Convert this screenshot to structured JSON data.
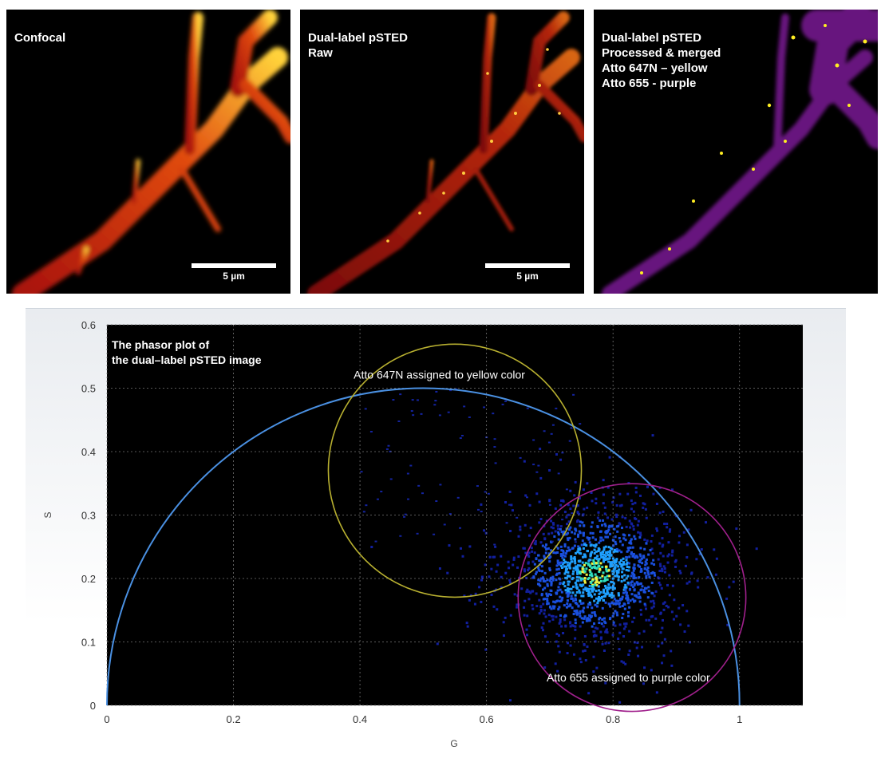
{
  "panels": [
    {
      "id": "confocal",
      "label": "Confocal",
      "scalebar": "5 µm"
    },
    {
      "id": "psted-raw",
      "label": "Dual-label pSTED\nRaw",
      "scalebar": "5 µm"
    },
    {
      "id": "psted-merged",
      "label": "Dual-label pSTED\nProcessed & merged\nAtto 647N – yellow\nAtto 655 - purple",
      "scalebar": ""
    }
  ],
  "colors": {
    "hot_low": "#b3160a",
    "hot_high": "#ffd23a",
    "merged_purple": "#a020c0",
    "merged_yellow": "#ffee22",
    "semicircle": "#4a90e2",
    "yellow_circle": "#b8b030",
    "purple_circle": "#a0208c"
  },
  "chart_data": {
    "type": "heatmap",
    "title": "The phasor plot of\nthe dual–label pSTED image",
    "xlabel": "G",
    "ylabel": "S",
    "xlim": [
      0,
      1.1
    ],
    "ylim": [
      0,
      0.6
    ],
    "xticks": [
      0,
      0.2,
      0.4,
      0.6,
      0.8,
      1
    ],
    "yticks": [
      0,
      0.1,
      0.2,
      0.3,
      0.4,
      0.5,
      0.6
    ],
    "grid": true,
    "semicircle": {
      "center": [
        0.5,
        0
      ],
      "radius": 0.5
    },
    "cluster": {
      "center": [
        0.77,
        0.21
      ],
      "spread": [
        0.07,
        0.06
      ]
    },
    "circles": [
      {
        "name": "atto647n",
        "center": [
          0.55,
          0.37
        ],
        "radius": 0.2,
        "label": "Atto 647N assigned to yellow color"
      },
      {
        "name": "atto655",
        "center": [
          0.83,
          0.17
        ],
        "radius": 0.18,
        "label": "Atto 655 assigned to purple color"
      }
    ]
  }
}
